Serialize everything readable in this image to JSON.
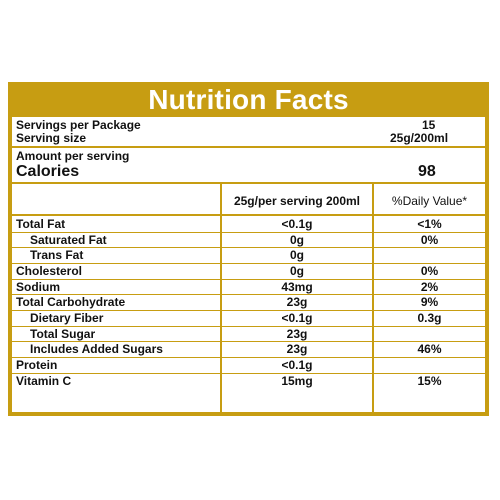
{
  "title": "Nutrition Facts",
  "servings": {
    "per_package_label": "Servings per Package",
    "per_package_value": "15",
    "size_label": "Serving size",
    "size_value": "25g/200ml"
  },
  "amount": {
    "label": "Amount per serving",
    "calories_label": "Calories",
    "calories_value": "98"
  },
  "table": {
    "col_serving": "25g/per serving 200ml",
    "col_daily": "%Daily Value*",
    "rows": [
      {
        "label": "Total Fat",
        "value": "<0.1g",
        "dv": "<1%"
      },
      {
        "label": "Saturated Fat",
        "value": "0g",
        "dv": "0%"
      },
      {
        "label": "Trans Fat",
        "value": "0g",
        "dv": ""
      },
      {
        "label": "Cholesterol",
        "value": "0g",
        "dv": "0%"
      },
      {
        "label": "Sodium",
        "value": "43mg",
        "dv": "2%"
      },
      {
        "label": "Total Carbohydrate",
        "value": "23g",
        "dv": "9%"
      },
      {
        "label": "Dietary Fiber",
        "value": "<0.1g",
        "dv": "0.3g"
      },
      {
        "label": "Total Sugar",
        "value": "23g",
        "dv": ""
      },
      {
        "label": "Includes Added Sugars",
        "value": "23g",
        "dv": "46%"
      },
      {
        "label": "Protein",
        "value": "<0.1g",
        "dv": ""
      },
      {
        "label": "Vitamin C",
        "value": "15mg",
        "dv": "15%"
      }
    ]
  },
  "colors": {
    "accent": "#c79d12",
    "background": "#ffffff",
    "text": "#111111"
  }
}
